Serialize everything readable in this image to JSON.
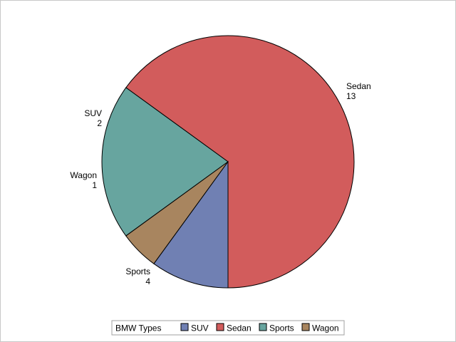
{
  "chart_data": {
    "type": "pie",
    "title": "",
    "legend": {
      "title": "BMW Types",
      "placement": "bottom-center",
      "entries": [
        "SUV",
        "Sedan",
        "Sports",
        "Wagon"
      ]
    },
    "categories": [
      "SUV",
      "Sedan",
      "Sports",
      "Wagon"
    ],
    "values": [
      2,
      13,
      4,
      1
    ],
    "colors": {
      "SUV": "#7080b3",
      "Sedan": "#d25c5c",
      "Sports": "#67a59f",
      "Wagon": "#a8855f"
    }
  }
}
